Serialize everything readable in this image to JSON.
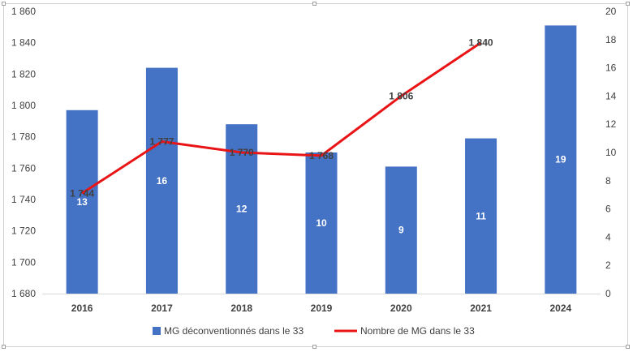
{
  "chart_data": {
    "type": "bar",
    "categories": [
      "2016",
      "2017",
      "2018",
      "2019",
      "2020",
      "2021",
      "2024"
    ],
    "series": [
      {
        "name": "MG déconventionnés dans le 33",
        "type": "bar",
        "axis": "right",
        "values": [
          13,
          16,
          12,
          10,
          9,
          11,
          19
        ],
        "labels": [
          "13",
          "16",
          "12",
          "10",
          "9",
          "11",
          "19"
        ],
        "color": "#4472C4"
      },
      {
        "name": "Nombre de MG dans le 33",
        "type": "line",
        "axis": "left",
        "values": [
          1744,
          1777,
          1770,
          1768,
          1806,
          1840,
          null
        ],
        "labels": [
          "1 744",
          "1 777",
          "1 770",
          "1 768",
          "1 806",
          "1 840",
          ""
        ],
        "color": "#E81416"
      }
    ],
    "y_left": {
      "ylim": [
        1680,
        1860
      ],
      "ticks": [
        1680,
        1700,
        1720,
        1740,
        1760,
        1780,
        1800,
        1820,
        1840,
        1860
      ],
      "tick_labels": [
        "1 680",
        "1 700",
        "1 720",
        "1 740",
        "1 760",
        "1 780",
        "1 800",
        "1 820",
        "1 840",
        "1 860"
      ]
    },
    "y_right": {
      "ylim": [
        0,
        20
      ],
      "ticks": [
        0,
        2,
        4,
        6,
        8,
        10,
        12,
        14,
        16,
        18,
        20
      ],
      "tick_labels": [
        "0",
        "2",
        "4",
        "6",
        "8",
        "10",
        "12",
        "14",
        "16",
        "18",
        "20"
      ]
    },
    "grid": false,
    "legend_position": "bottom"
  }
}
